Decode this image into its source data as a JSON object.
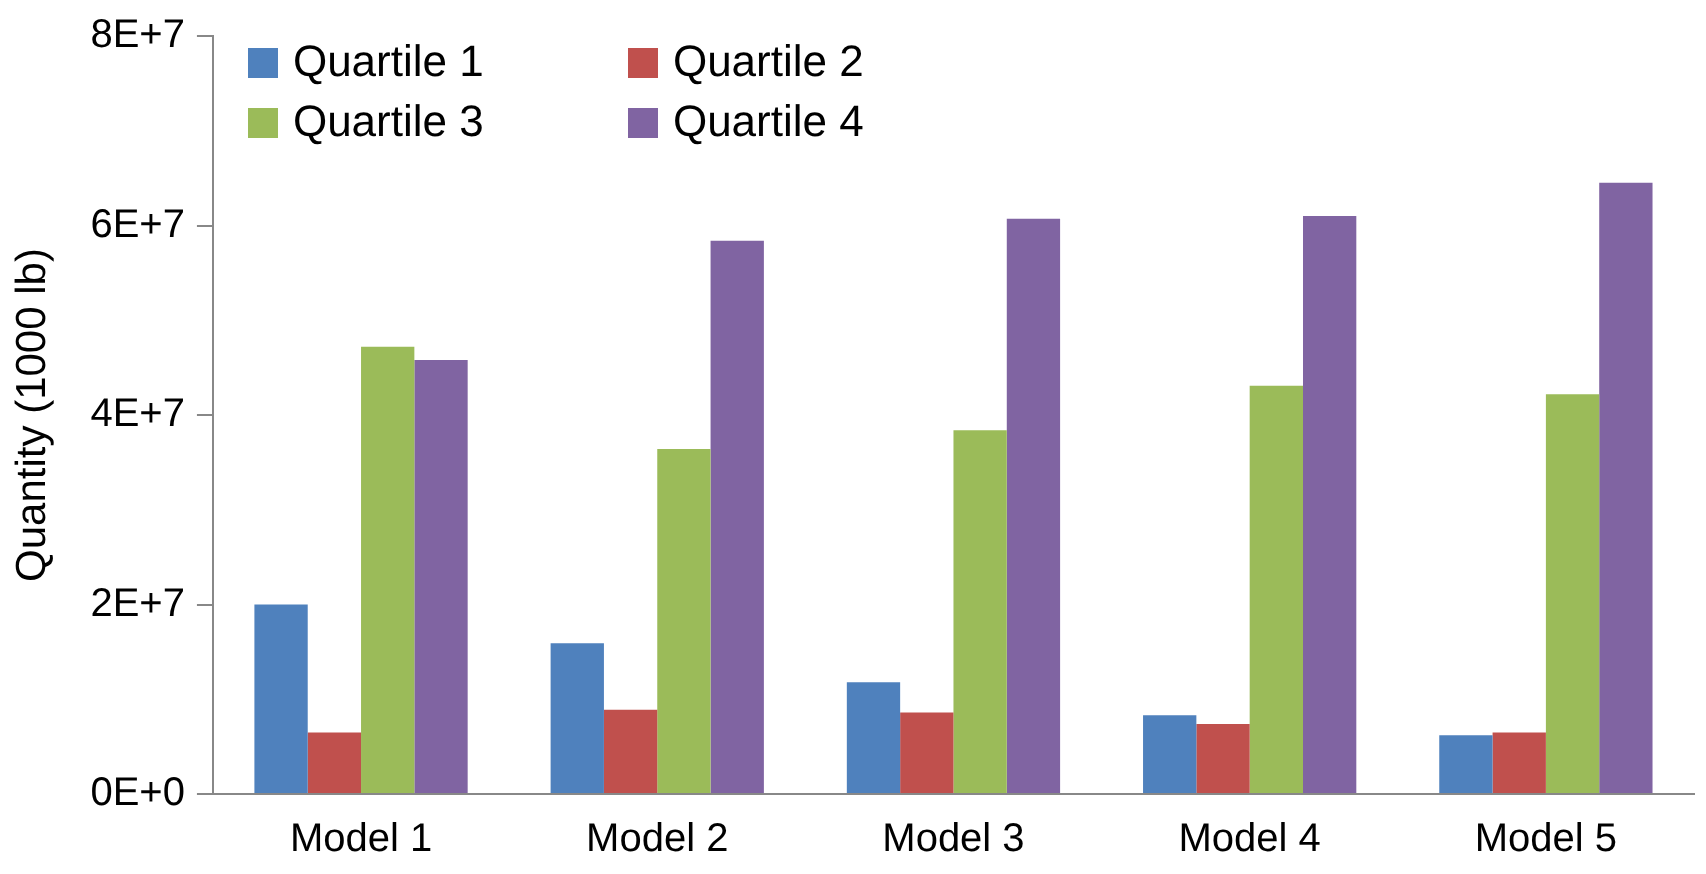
{
  "chart_data": {
    "type": "bar",
    "ylabel": "Quantity (1000 lb)",
    "categories": [
      "Model 1",
      "Model 2",
      "Model 3",
      "Model 4",
      "Model 5"
    ],
    "series": [
      {
        "name": "Quartile 1",
        "color": "#4f81bd",
        "values": [
          20000000,
          15900000,
          11800000,
          8300000,
          6200000
        ]
      },
      {
        "name": "Quartile 2",
        "color": "#c0504d",
        "values": [
          6500000,
          8900000,
          8600000,
          7400000,
          6500000
        ]
      },
      {
        "name": "Quartile 3",
        "color": "#9bbb59",
        "values": [
          47200000,
          36400000,
          38400000,
          43100000,
          42200000
        ]
      },
      {
        "name": "Quartile 4",
        "color": "#8064a2",
        "values": [
          45800000,
          58400000,
          60700000,
          61000000,
          64500000
        ]
      }
    ],
    "ylim": [
      0,
      80000000
    ],
    "yticks": [
      {
        "value": 0,
        "label": "0E+0"
      },
      {
        "value": 20000000,
        "label": "2E+7"
      },
      {
        "value": 40000000,
        "label": "4E+7"
      },
      {
        "value": 60000000,
        "label": "6E+7"
      },
      {
        "value": 80000000,
        "label": "8E+7"
      }
    ],
    "grid": false,
    "legend": "top left"
  }
}
